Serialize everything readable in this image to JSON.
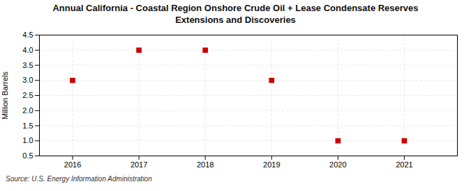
{
  "chart_data": {
    "type": "scatter",
    "title": "Annual California - Coastal Region Onshore Crude Oil + Lease Condensate Reserves\nExtensions and Discoveries",
    "ylabel": "Million Barrels",
    "annotations": [
      "Source: U.S. Energy Information Administration"
    ],
    "x": [
      2016,
      2017,
      2018,
      2019,
      2020,
      2021
    ],
    "values": [
      3.0,
      4.0,
      4.0,
      3.0,
      1.0,
      1.0
    ],
    "xlim": [
      2015.5,
      2021.8
    ],
    "xticks": [
      2016,
      2017,
      2018,
      2019,
      2020,
      2021
    ],
    "ylim": [
      0.5,
      4.5
    ],
    "yticks": [
      0.5,
      {
        "value": 1.0,
        "label": "1.0"
      },
      1.5,
      {
        "value": 2.0,
        "label": "2.0"
      },
      2.5,
      {
        "value": 3.0,
        "label": "3.0"
      },
      3.5,
      {
        "value": 4.0,
        "label": "4.0"
      },
      4.5
    ],
    "color": "#cc0000",
    "marker": "square",
    "grid": true
  }
}
